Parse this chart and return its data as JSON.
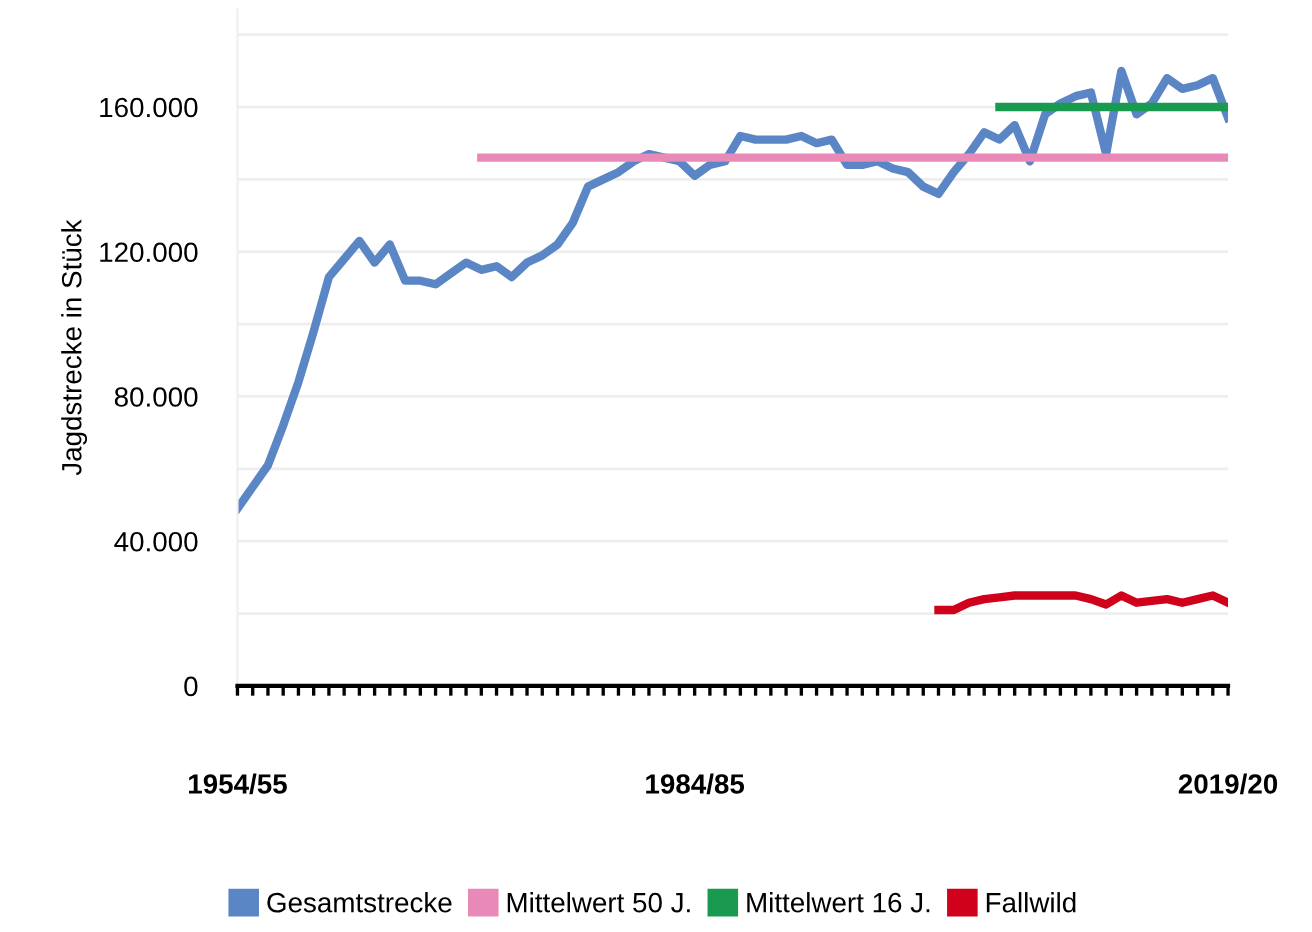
{
  "chart_data": {
    "type": "line",
    "ylabel": "Jagdstrecke in Stück",
    "categories": [
      "1954/55",
      null,
      null,
      null,
      null,
      null,
      null,
      null,
      null,
      null,
      null,
      null,
      null,
      null,
      null,
      null,
      null,
      null,
      null,
      null,
      null,
      null,
      null,
      null,
      null,
      null,
      null,
      null,
      null,
      null,
      "1984/85",
      null,
      null,
      null,
      null,
      null,
      null,
      null,
      null,
      null,
      null,
      null,
      null,
      null,
      null,
      null,
      null,
      null,
      null,
      null,
      null,
      null,
      null,
      null,
      null,
      null,
      null,
      null,
      null,
      null,
      null,
      null,
      null,
      null,
      null,
      "2019/20"
    ],
    "ylim": [
      0,
      187000
    ],
    "yticks": [
      {
        "value": 0,
        "label": "0"
      },
      {
        "value": 20000,
        "label": null
      },
      {
        "value": 40000,
        "label": "40.000"
      },
      {
        "value": 60000,
        "label": null
      },
      {
        "value": 80000,
        "label": "80.000"
      },
      {
        "value": 100000,
        "label": null
      },
      {
        "value": 120000,
        "label": "120.000"
      },
      {
        "value": 140000,
        "label": null
      },
      {
        "value": 160000,
        "label": "160.000"
      },
      {
        "value": 180000,
        "label": null
      }
    ],
    "grid": "y",
    "legend": "bottom",
    "marker": "none",
    "line_style": "solid",
    "series": [
      {
        "name": "Gesamtstrecke",
        "color": "#5b86c5",
        "values": [
          49000,
          55000,
          61000,
          72000,
          84000,
          98000,
          113000,
          118000,
          123000,
          117000,
          122000,
          112000,
          112000,
          111000,
          114000,
          117000,
          115000,
          116000,
          113000,
          117000,
          119000,
          122000,
          128000,
          138000,
          140000,
          142000,
          145000,
          147000,
          146000,
          145000,
          141000,
          144000,
          145000,
          152000,
          151000,
          151000,
          151000,
          152000,
          150000,
          151000,
          144000,
          144000,
          145000,
          143000,
          142000,
          138000,
          136000,
          142000,
          147000,
          153000,
          151000,
          155000,
          145000,
          158000,
          161000,
          163000,
          164000,
          147000,
          170000,
          158000,
          161000,
          168000,
          165000,
          166000,
          168000,
          157000
        ]
      },
      {
        "name": "Mittelwert 50 J.",
        "color": "#e889b8",
        "values": [
          null,
          null,
          null,
          null,
          null,
          null,
          null,
          null,
          null,
          null,
          null,
          null,
          null,
          null,
          null,
          null,
          146000,
          146000,
          146000,
          146000,
          146000,
          146000,
          146000,
          146000,
          146000,
          146000,
          146000,
          146000,
          146000,
          146000,
          146000,
          146000,
          146000,
          146000,
          146000,
          146000,
          146000,
          146000,
          146000,
          146000,
          146000,
          146000,
          146000,
          146000,
          146000,
          146000,
          146000,
          146000,
          146000,
          146000,
          146000,
          146000,
          146000,
          146000,
          146000,
          146000,
          146000,
          146000,
          146000,
          146000,
          146000,
          146000,
          146000,
          146000,
          146000,
          146000
        ]
      },
      {
        "name": "Mittelwert 16 J.",
        "color": "#1a9a50",
        "values": [
          null,
          null,
          null,
          null,
          null,
          null,
          null,
          null,
          null,
          null,
          null,
          null,
          null,
          null,
          null,
          null,
          null,
          null,
          null,
          null,
          null,
          null,
          null,
          null,
          null,
          null,
          null,
          null,
          null,
          null,
          null,
          null,
          null,
          null,
          null,
          null,
          null,
          null,
          null,
          null,
          null,
          null,
          null,
          null,
          null,
          null,
          null,
          null,
          null,
          null,
          160000,
          160000,
          160000,
          160000,
          160000,
          160000,
          160000,
          160000,
          160000,
          160000,
          160000,
          160000,
          160000,
          160000,
          160000,
          160000
        ]
      },
      {
        "name": "Fallwild",
        "color": "#d0021b",
        "values": [
          null,
          null,
          null,
          null,
          null,
          null,
          null,
          null,
          null,
          null,
          null,
          null,
          null,
          null,
          null,
          null,
          null,
          null,
          null,
          null,
          null,
          null,
          null,
          null,
          null,
          null,
          null,
          null,
          null,
          null,
          null,
          null,
          null,
          null,
          null,
          null,
          null,
          null,
          null,
          null,
          null,
          null,
          null,
          null,
          null,
          null,
          21000,
          21000,
          23000,
          24000,
          24500,
          25000,
          25000,
          25000,
          25000,
          25000,
          24000,
          22500,
          25000,
          23000,
          23500,
          24000,
          23000,
          24000,
          25000,
          23000
        ]
      }
    ]
  }
}
